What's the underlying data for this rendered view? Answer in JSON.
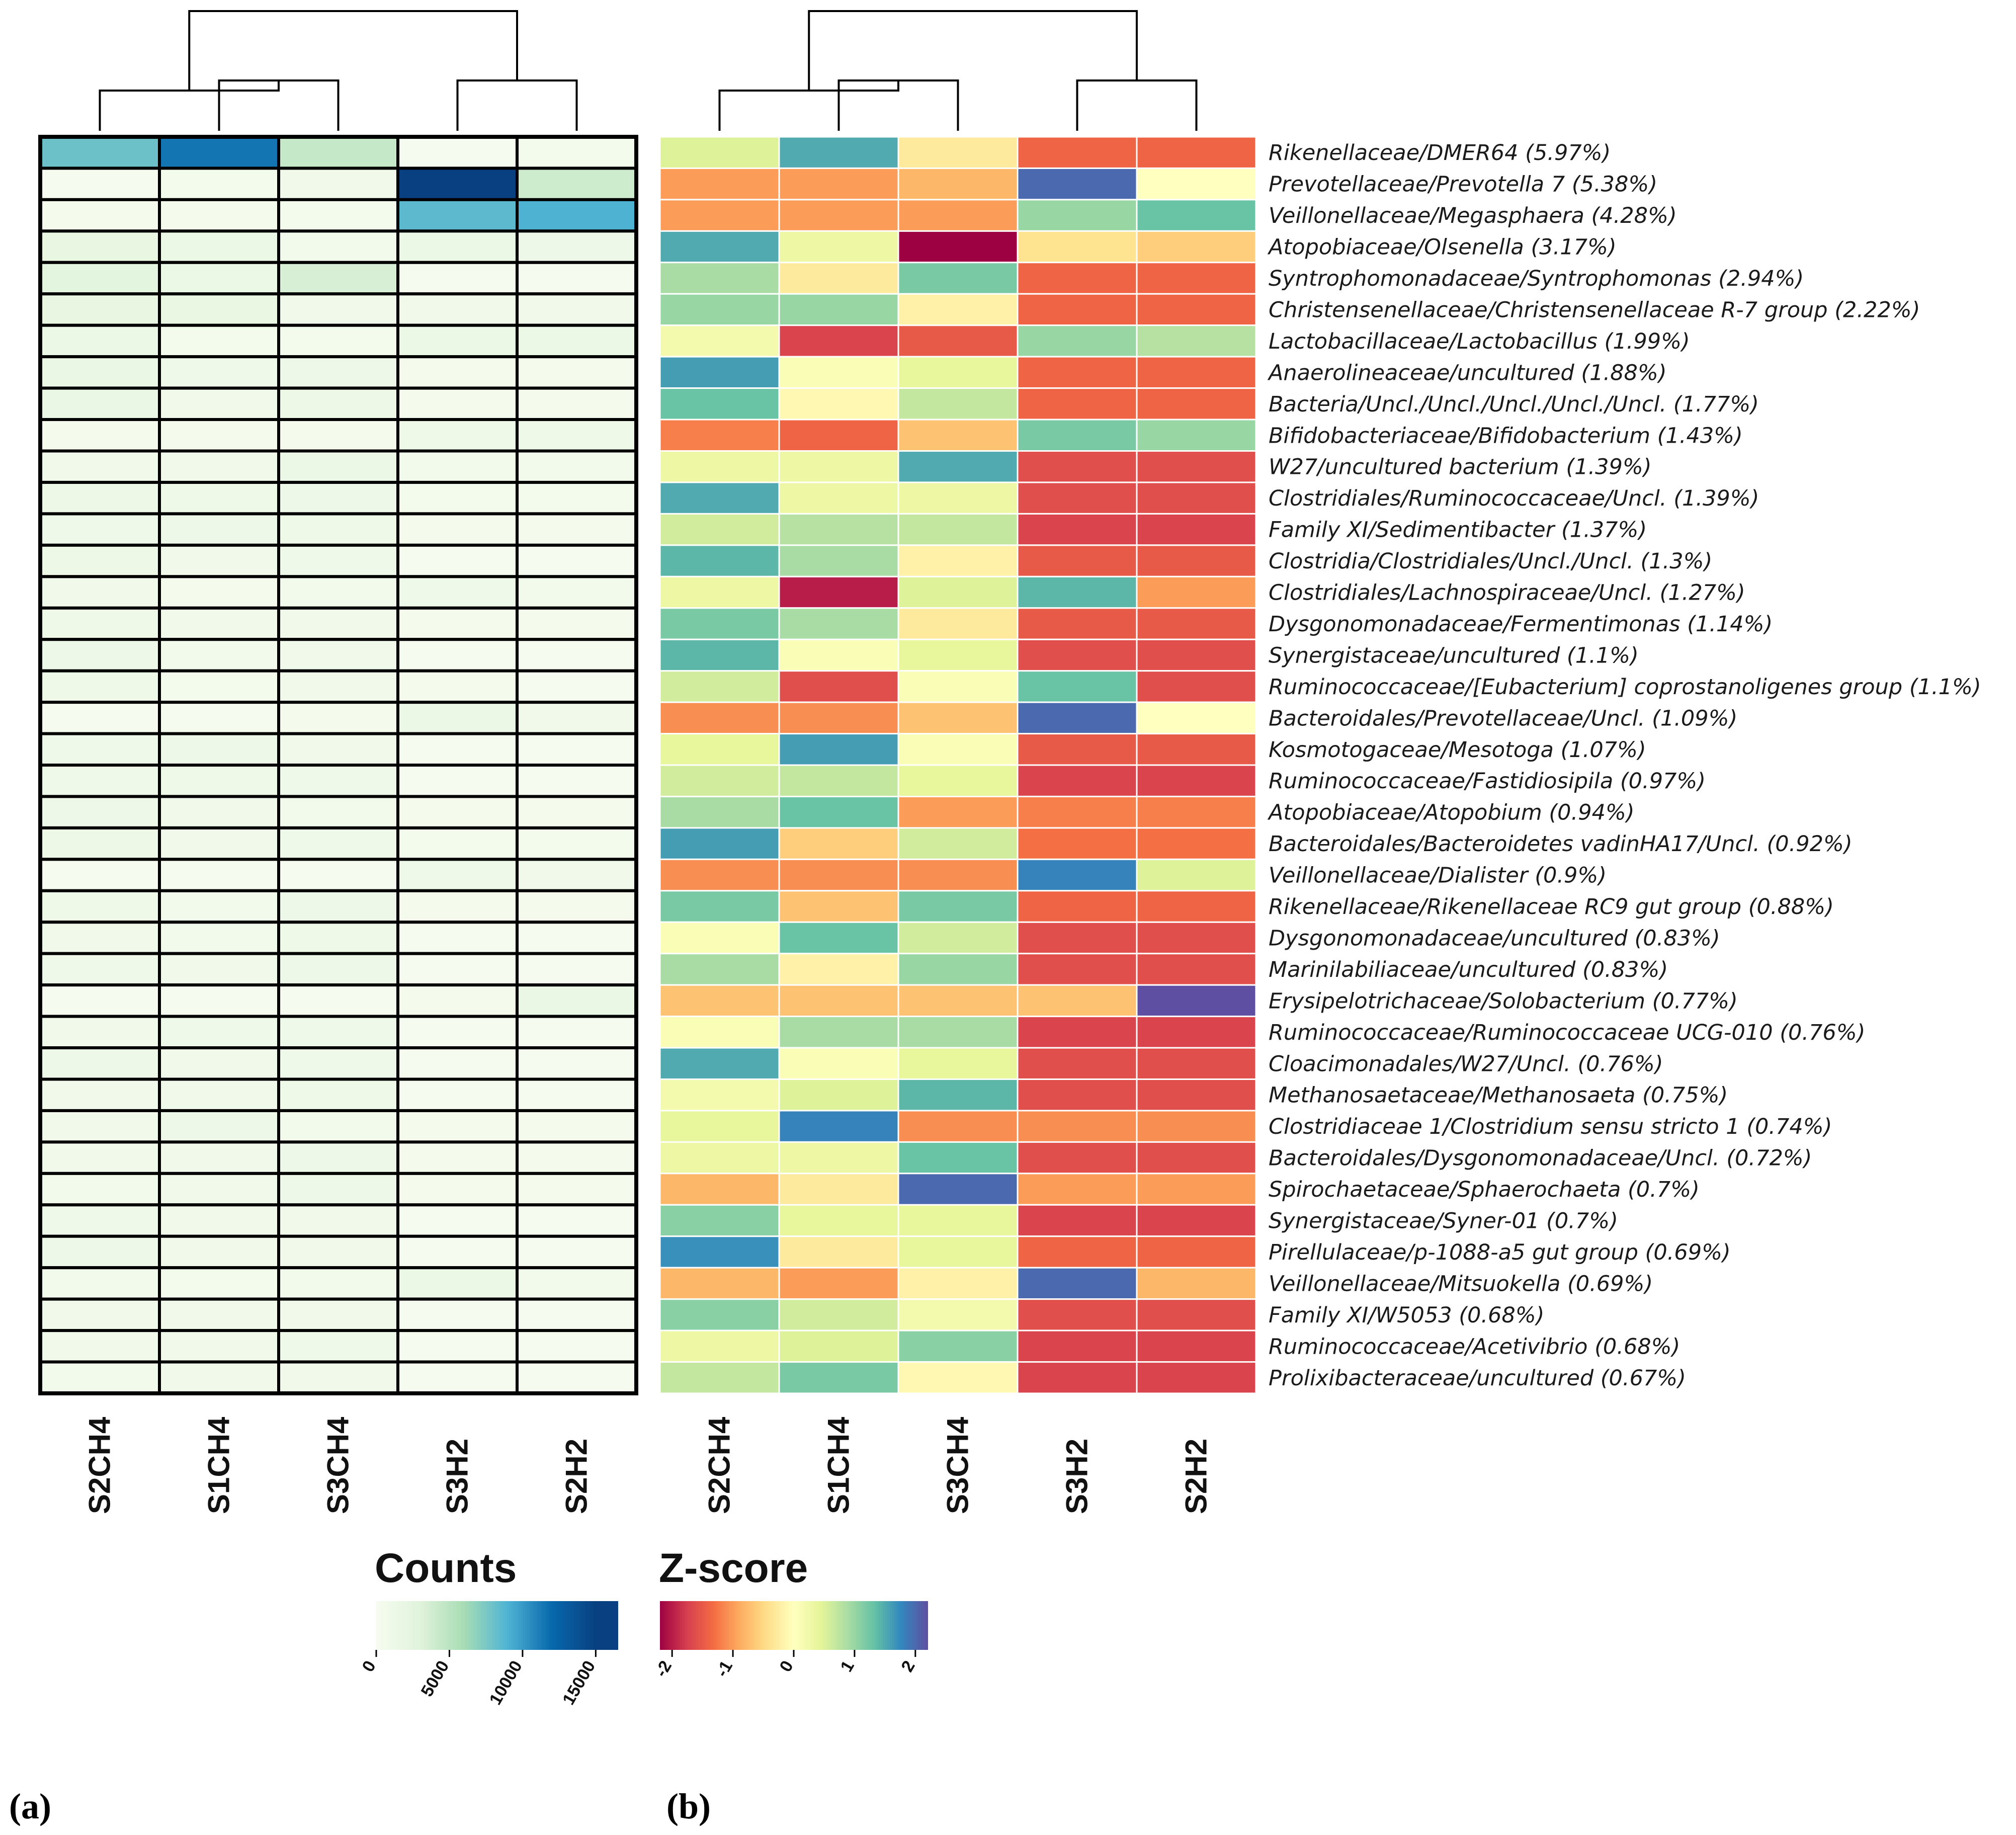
{
  "chart_data": [
    {
      "type": "heatmap",
      "panel": "(a)",
      "legend_title": "Counts",
      "columns": [
        "S2CH4",
        "S1CH4",
        "S3CH4",
        "S3H2",
        "S2H2"
      ],
      "value_range": [
        0,
        16500
      ],
      "legend_ticks": [
        "0",
        "5000",
        "10000",
        "15000"
      ],
      "legend_tick_values": [
        0,
        5000,
        10000,
        15000
      ],
      "colors": [
        "#f7fcf0",
        "#e0f3db",
        "#a8ddb5",
        "#4eb3d3",
        "#0868ac",
        "#084081",
        "#084081"
      ],
      "color_stops": [
        0,
        3000,
        6000,
        9000,
        12000,
        15000,
        16500
      ],
      "values": [
        [
          8000,
          11500,
          4500,
          300,
          500
        ],
        [
          300,
          500,
          900,
          16000,
          4000
        ],
        [
          400,
          400,
          500,
          8500,
          9000
        ],
        [
          2000,
          1500,
          600,
          1500,
          1200
        ],
        [
          2500,
          1500,
          3500,
          300,
          300
        ],
        [
          2000,
          1800,
          800,
          800,
          800
        ],
        [
          1400,
          500,
          500,
          1500,
          1500
        ],
        [
          1700,
          1000,
          1200,
          400,
          400
        ],
        [
          1600,
          900,
          1300,
          400,
          400
        ],
        [
          400,
          400,
          400,
          1100,
          1100
        ],
        [
          900,
          800,
          1500,
          600,
          600
        ],
        [
          1300,
          1100,
          1200,
          500,
          500
        ],
        [
          1000,
          1200,
          1100,
          400,
          400
        ],
        [
          1300,
          900,
          1000,
          300,
          300
        ],
        [
          900,
          400,
          600,
          1000,
          700
        ],
        [
          1100,
          800,
          900,
          400,
          400
        ],
        [
          1200,
          700,
          900,
          300,
          300
        ],
        [
          1100,
          500,
          800,
          400,
          300
        ],
        [
          300,
          300,
          400,
          1500,
          900
        ],
        [
          1000,
          1200,
          900,
          300,
          300
        ],
        [
          1000,
          1100,
          1000,
          300,
          300
        ],
        [
          1200,
          900,
          600,
          400,
          400
        ],
        [
          1300,
          800,
          1000,
          500,
          500
        ],
        [
          200,
          300,
          300,
          1000,
          900
        ],
        [
          1100,
          700,
          1200,
          400,
          400
        ],
        [
          900,
          600,
          1100,
          300,
          300
        ],
        [
          1000,
          900,
          1200,
          300,
          300
        ],
        [
          300,
          300,
          300,
          400,
          1600
        ],
        [
          900,
          1000,
          1000,
          300,
          300
        ],
        [
          1200,
          900,
          1000,
          300,
          300
        ],
        [
          800,
          900,
          1100,
          300,
          300
        ],
        [
          800,
          1200,
          700,
          400,
          400
        ],
        [
          800,
          800,
          1200,
          400,
          400
        ],
        [
          700,
          800,
          1200,
          400,
          400
        ],
        [
          1000,
          900,
          900,
          300,
          300
        ],
        [
          1200,
          800,
          900,
          300,
          300
        ],
        [
          600,
          500,
          600,
          1400,
          700
        ],
        [
          900,
          900,
          900,
          300,
          300
        ],
        [
          800,
          900,
          1000,
          300,
          300
        ],
        [
          700,
          900,
          800,
          300,
          300
        ]
      ],
      "column_dendrogram": "((S2CH4,(S1CH4,S3CH4)),(S3H2,S2H2))"
    },
    {
      "type": "heatmap",
      "panel": "(b)",
      "legend_title": "Z-score",
      "columns": [
        "S2CH4",
        "S1CH4",
        "S3CH4",
        "S3H2",
        "S2H2"
      ],
      "value_range": [
        -2.2,
        2.2
      ],
      "legend_ticks": [
        "-2",
        "-1",
        "0",
        "1",
        "2"
      ],
      "legend_tick_values": [
        -2,
        -1,
        0,
        1,
        2
      ],
      "colors": [
        "#9e0142",
        "#d53e4f",
        "#f46d43",
        "#fdae61",
        "#fee08b",
        "#ffffbf",
        "#e6f598",
        "#abdda4",
        "#66c2a5",
        "#3288bd",
        "#5e4fa2"
      ],
      "color_stops": [
        -2.2,
        -1.76,
        -1.32,
        -0.88,
        -0.44,
        0,
        0.44,
        0.88,
        1.32,
        1.76,
        2.2
      ],
      "values": [
        [
          0.5,
          1.5,
          -0.3,
          -1.4,
          -1.4
        ],
        [
          -1.0,
          -1.0,
          -0.8,
          2.0,
          0.0
        ],
        [
          -1.0,
          -1.0,
          -1.0,
          1.0,
          1.3
        ],
        [
          1.5,
          0.3,
          -2.2,
          -0.4,
          -0.6
        ],
        [
          0.9,
          -0.3,
          1.2,
          -1.4,
          -1.4
        ],
        [
          1.0,
          1.0,
          -0.2,
          -1.4,
          -1.4
        ],
        [
          0.2,
          -1.7,
          -1.5,
          1.0,
          0.8
        ],
        [
          1.6,
          0.1,
          0.4,
          -1.4,
          -1.4
        ],
        [
          1.3,
          -0.1,
          0.7,
          -1.4,
          -1.4
        ],
        [
          -1.2,
          -1.4,
          -0.7,
          1.2,
          1.0
        ],
        [
          0.3,
          0.3,
          1.5,
          -1.6,
          -1.6
        ],
        [
          1.5,
          0.3,
          0.3,
          -1.6,
          -1.6
        ],
        [
          0.6,
          0.8,
          0.7,
          -1.7,
          -1.7
        ],
        [
          1.4,
          0.9,
          -0.2,
          -1.5,
          -1.5
        ],
        [
          0.3,
          -2.0,
          0.5,
          1.4,
          -1.0
        ],
        [
          1.2,
          0.9,
          -0.3,
          -1.5,
          -1.5
        ],
        [
          1.4,
          0.1,
          0.4,
          -1.6,
          -1.6
        ],
        [
          0.6,
          -1.6,
          0.1,
          1.3,
          -1.6
        ],
        [
          -1.1,
          -1.1,
          -0.7,
          2.0,
          0.0
        ],
        [
          0.4,
          1.6,
          0.1,
          -1.5,
          -1.5
        ],
        [
          0.6,
          0.7,
          0.4,
          -1.7,
          -1.7
        ],
        [
          0.9,
          1.3,
          -1.0,
          -1.2,
          -1.2
        ],
        [
          1.6,
          -0.6,
          0.6,
          -1.3,
          -1.3
        ],
        [
          -1.1,
          -1.1,
          -1.1,
          1.8,
          0.5
        ],
        [
          1.2,
          -0.7,
          1.2,
          -1.4,
          -1.4
        ],
        [
          0.1,
          1.3,
          0.6,
          -1.6,
          -1.6
        ],
        [
          0.9,
          -0.2,
          1.0,
          -1.6,
          -1.6
        ],
        [
          -0.7,
          -0.7,
          -0.7,
          -0.7,
          2.2
        ],
        [
          0.1,
          0.9,
          0.9,
          -1.7,
          -1.7
        ],
        [
          1.5,
          0.1,
          0.4,
          -1.6,
          -1.6
        ],
        [
          0.2,
          0.5,
          1.4,
          -1.6,
          -1.6
        ],
        [
          0.4,
          1.8,
          -1.1,
          -1.1,
          -1.1
        ],
        [
          0.3,
          0.3,
          1.3,
          -1.6,
          -1.6
        ],
        [
          -0.8,
          -0.3,
          2.0,
          -1.0,
          -1.0
        ],
        [
          1.1,
          0.4,
          0.4,
          -1.7,
          -1.7
        ],
        [
          1.7,
          -0.3,
          0.4,
          -1.4,
          -1.4
        ],
        [
          -0.8,
          -1.0,
          -0.2,
          2.0,
          -0.8
        ],
        [
          1.1,
          0.6,
          0.2,
          -1.6,
          -1.6
        ],
        [
          0.3,
          0.5,
          1.1,
          -1.7,
          -1.7
        ],
        [
          0.7,
          1.2,
          -0.1,
          -1.7,
          -1.7
        ]
      ],
      "column_dendrogram": "((S2CH4,(S1CH4,S3CH4)),(S3H2,S2H2))"
    }
  ],
  "row_labels": [
    "Rikenellaceae/DMER64 (5.97%)",
    "Prevotellaceae/Prevotella 7 (5.38%)",
    "Veillonellaceae/Megasphaera (4.28%)",
    "Atopobiaceae/Olsenella (3.17%)",
    "Syntrophomonadaceae/Syntrophomonas (2.94%)",
    "Christensenellaceae/Christensenellaceae R-7 group (2.22%)",
    "Lactobacillaceae/Lactobacillus (1.99%)",
    "Anaerolineaceae/uncultured (1.88%)",
    "Bacteria/Uncl./Uncl./Uncl./Uncl./Uncl. (1.77%)",
    "Bifidobacteriaceae/Bifidobacterium (1.43%)",
    "W27/uncultured bacterium (1.39%)",
    "Clostridiales/Ruminococcaceae/Uncl. (1.39%)",
    "Family XI/Sedimentibacter (1.37%)",
    "Clostridia/Clostridiales/Uncl./Uncl. (1.3%)",
    "Clostridiales/Lachnospiraceae/Uncl. (1.27%)",
    "Dysgonomonadaceae/Fermentimonas (1.14%)",
    "Synergistaceae/uncultured (1.1%)",
    "Ruminococcaceae/[Eubacterium] coprostanoligenes group (1.1%)",
    "Bacteroidales/Prevotellaceae/Uncl. (1.09%)",
    "Kosmotogaceae/Mesotoga (1.07%)",
    "Ruminococcaceae/Fastidiosipila (0.97%)",
    "Atopobiaceae/Atopobium (0.94%)",
    "Bacteroidales/Bacteroidetes vadinHA17/Uncl. (0.92%)",
    "Veillonellaceae/Dialister (0.9%)",
    "Rikenellaceae/Rikenellaceae RC9 gut group (0.88%)",
    "Dysgonomonadaceae/uncultured (0.83%)",
    "Marinilabiliaceae/uncultured (0.83%)",
    "Erysipelotrichaceae/Solobacterium (0.77%)",
    "Ruminococcaceae/Ruminococcaceae UCG-010 (0.76%)",
    "Cloacimonadales/W27/Uncl. (0.76%)",
    "Methanosaetaceae/Methanosaeta (0.75%)",
    "Clostridiaceae 1/Clostridium sensu stricto 1 (0.74%)",
    "Bacteroidales/Dysgonomonadaceae/Uncl. (0.72%)",
    "Spirochaetaceae/Sphaerochaeta (0.7%)",
    "Synergistaceae/Syner-01 (0.7%)",
    "Pirellulaceae/p-1088-a5 gut group (0.69%)",
    "Veillonellaceae/Mitsuokella (0.69%)",
    "Family XI/W5053 (0.68%)",
    "Ruminococcaceae/Acetivibrio (0.68%)",
    "Prolixibacteraceae/uncultured (0.67%)"
  ]
}
